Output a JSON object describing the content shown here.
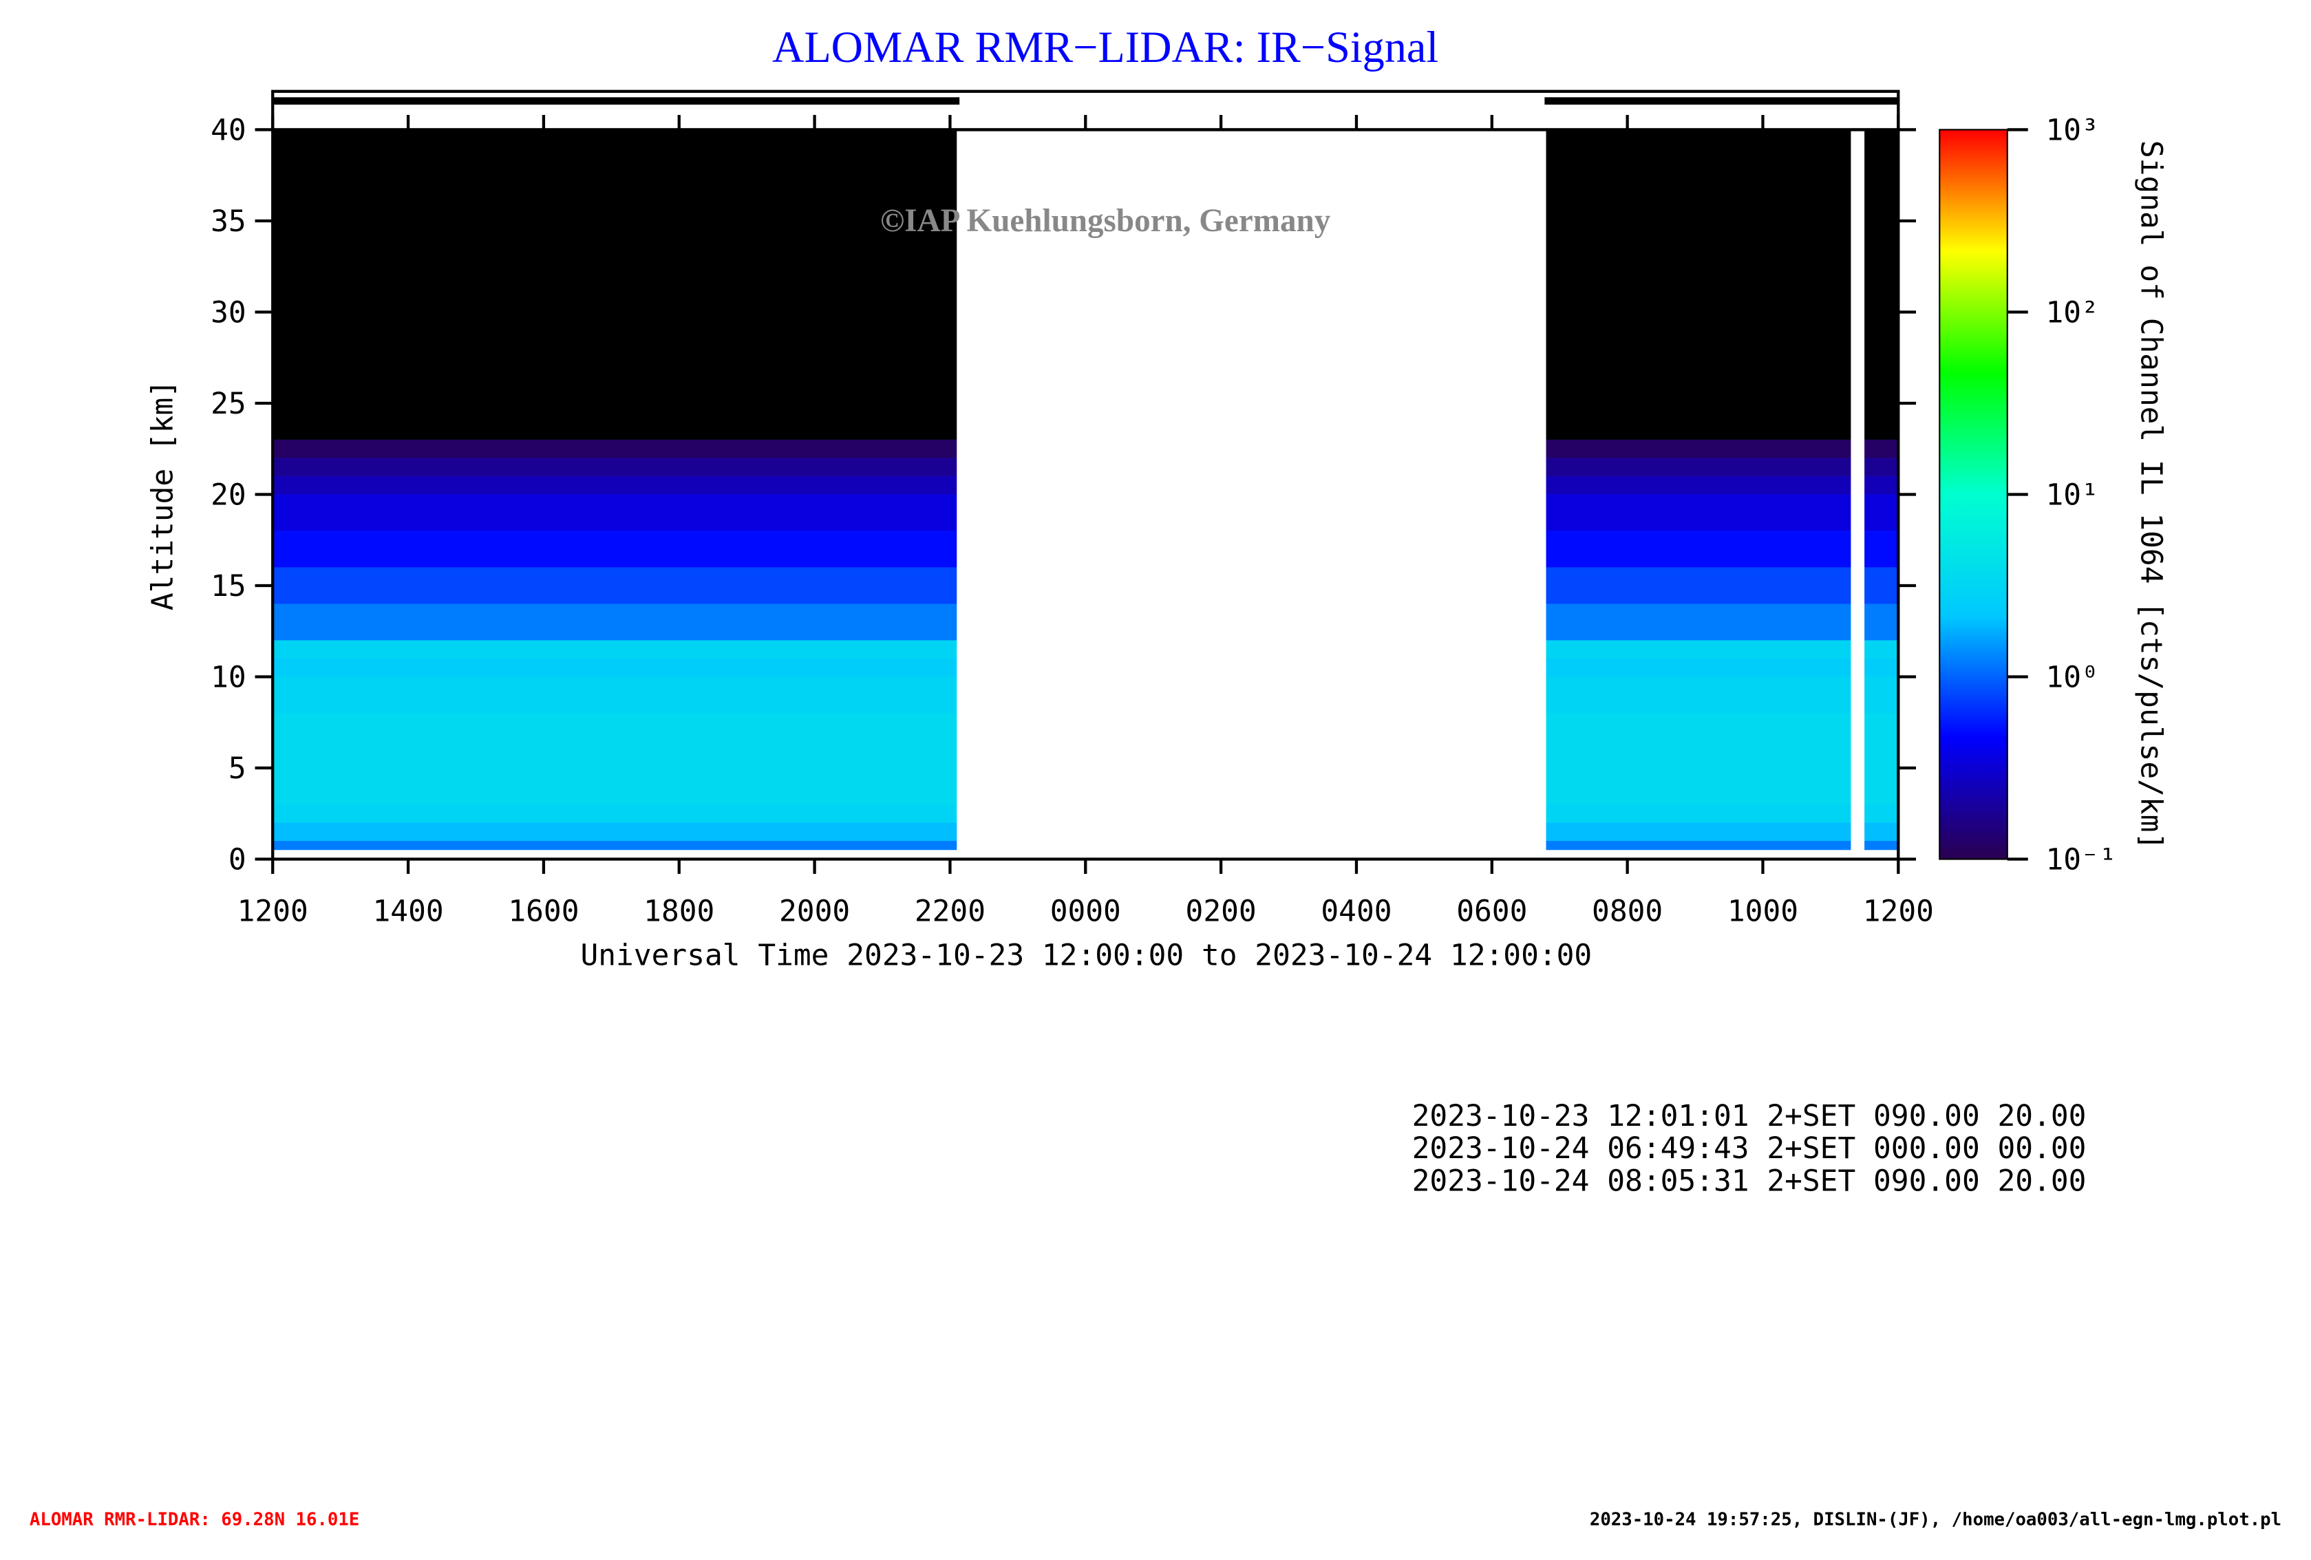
{
  "chart_data": {
    "type": "heatmap",
    "title": "ALOMAR RMR−LIDAR: IR−Signal",
    "watermark": "©IAP Kuehlungsborn, Germany",
    "x_label": "Universal Time 2023-10-23 12:00:00 to 2023-10-24 12:00:00",
    "y_label": "Altitude [km]",
    "colorbar_label": "Signal of Channel IL 1064 [cts/pulse/km]",
    "xlim": [
      0,
      24
    ],
    "xticks": [
      {
        "value": 0,
        "label": "1200"
      },
      {
        "value": 2,
        "label": "1400"
      },
      {
        "value": 4,
        "label": "1600"
      },
      {
        "value": 6,
        "label": "1800"
      },
      {
        "value": 8,
        "label": "2000"
      },
      {
        "value": 10,
        "label": "2200"
      },
      {
        "value": 12,
        "label": "0000"
      },
      {
        "value": 14,
        "label": "0200"
      },
      {
        "value": 16,
        "label": "0400"
      },
      {
        "value": 18,
        "label": "0600"
      },
      {
        "value": 20,
        "label": "0800"
      },
      {
        "value": 22,
        "label": "1000"
      },
      {
        "value": 24,
        "label": "1200"
      }
    ],
    "ylim": [
      0,
      40
    ],
    "yticks": [
      0,
      5,
      10,
      15,
      20,
      25,
      30,
      35,
      40
    ],
    "zlim": [
      0.1,
      1000
    ],
    "zscale": "log",
    "zticks": [
      {
        "value": 0.1,
        "label": "10⁻¹"
      },
      {
        "value": 1,
        "label": "10⁰"
      },
      {
        "value": 10,
        "label": "10¹"
      },
      {
        "value": 100,
        "label": "10²"
      },
      {
        "value": 1000,
        "label": "10³"
      }
    ],
    "colormap": [
      "#2a0050",
      "#0000ff",
      "#00c8ff",
      "#00ffd0",
      "#00ff00",
      "#ffff00",
      "#ff0000"
    ],
    "segments": [
      [
        0,
        10.1
      ],
      [
        18.8,
        23.3
      ],
      [
        23.5,
        24
      ]
    ],
    "altitude_edges": [
      0.5,
      1,
      2,
      3,
      5,
      8,
      10,
      11,
      12,
      14,
      16,
      18,
      20,
      21,
      22,
      23,
      40
    ],
    "values": [
      1.2,
      2,
      3,
      3.5,
      3.5,
      3,
      2.5,
      3,
      1.2,
      0.8,
      0.5,
      0.35,
      0.25,
      0.18,
      0.12,
      null
    ],
    "info_lines": [
      "2023-10-23 12:01:01 2+SET 090.00 20.00",
      "2023-10-24 06:49:43 2+SET 000.00 00.00",
      "2023-10-24 08:05:31 2+SET 090.00 20.00"
    ],
    "footer_left": "ALOMAR RMR-LIDAR: 69.28N 16.01E",
    "footer_right": "2023-10-24 19:57:25, DISLIN-(JF), /home/oa003/all-egn-lmg.plot.pl"
  }
}
